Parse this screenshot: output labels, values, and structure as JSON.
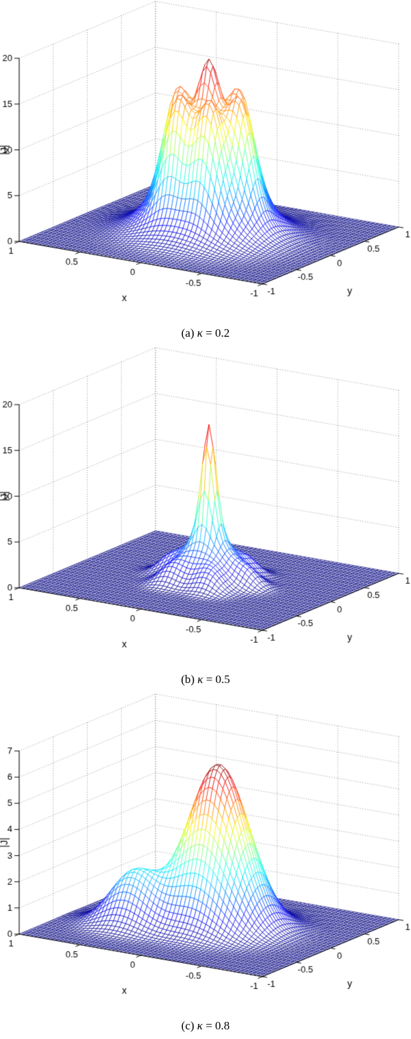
{
  "page": {
    "background": "#ffffff"
  },
  "chart_data": [
    {
      "type": "surface-mesh-3d",
      "caption_prefix": "(a) ",
      "caption_symbol": "κ",
      "caption_suffix": " = 0.2",
      "kappa": 0.2,
      "xlabel": "x",
      "ylabel": "y",
      "zlabel": "|J|",
      "xlim": [
        -1,
        1
      ],
      "ylim": [
        -1,
        1
      ],
      "zlim": [
        0,
        20
      ],
      "xticks": [
        -1,
        -0.5,
        0,
        0.5,
        1
      ],
      "yticks": [
        -1,
        -0.5,
        0,
        0.5,
        1
      ],
      "zticks": [
        0,
        5,
        10,
        15,
        20
      ],
      "approx_peak": 19,
      "colormap": "jet",
      "grid_points": 61,
      "surface_components": [
        {
          "amp": 11.0,
          "x0": 0.0,
          "y0": 0.0,
          "sx": 0.4,
          "sy": 0.4
        },
        {
          "amp": 7.5,
          "x0": 0.0,
          "y0": 0.0,
          "sx": 0.1,
          "sy": 0.1
        },
        {
          "amp": 8.0,
          "x0": 0.27,
          "y0": 0.0,
          "sx": 0.13,
          "sy": 0.13
        },
        {
          "amp": 8.0,
          "x0": 0.135,
          "y0": 0.234,
          "sx": 0.13,
          "sy": 0.13
        },
        {
          "amp": 8.0,
          "x0": -0.135,
          "y0": 0.234,
          "sx": 0.13,
          "sy": 0.13
        },
        {
          "amp": 8.0,
          "x0": -0.27,
          "y0": 0.0,
          "sx": 0.13,
          "sy": 0.13
        },
        {
          "amp": 8.0,
          "x0": -0.135,
          "y0": -0.234,
          "sx": 0.13,
          "sy": 0.13
        },
        {
          "amp": 8.0,
          "x0": 0.135,
          "y0": -0.234,
          "sx": 0.13,
          "sy": 0.13
        }
      ]
    },
    {
      "type": "surface-mesh-3d",
      "caption_prefix": "(b) ",
      "caption_symbol": "κ",
      "caption_suffix": " = 0.5",
      "kappa": 0.5,
      "xlabel": "x",
      "ylabel": "y",
      "zlabel": "|J|",
      "xlim": [
        -1,
        1
      ],
      "ylim": [
        -1,
        1
      ],
      "zlim": [
        0,
        20
      ],
      "xticks": [
        -1,
        -0.5,
        0,
        0.5,
        1
      ],
      "yticks": [
        -1,
        -0.5,
        0,
        0.5,
        1
      ],
      "zticks": [
        0,
        5,
        10,
        15,
        20
      ],
      "approx_peak": 17,
      "colormap": "jet",
      "grid_points": 61,
      "surface_components": [
        {
          "amp": 6.0,
          "x0": 0.0,
          "y0": 0.0,
          "sx": 0.22,
          "sy": 0.22
        },
        {
          "amp": 11.0,
          "x0": 0.0,
          "y0": 0.0,
          "sx": 0.07,
          "sy": 0.07
        },
        {
          "amp": 1.6,
          "x0": 0.32,
          "y0": 0.0,
          "sx": 0.13,
          "sy": 0.13
        },
        {
          "amp": 1.6,
          "x0": 0.16,
          "y0": 0.277,
          "sx": 0.13,
          "sy": 0.13
        },
        {
          "amp": 1.6,
          "x0": -0.16,
          "y0": 0.277,
          "sx": 0.13,
          "sy": 0.13
        },
        {
          "amp": 1.6,
          "x0": -0.32,
          "y0": 0.0,
          "sx": 0.13,
          "sy": 0.13
        },
        {
          "amp": 1.6,
          "x0": -0.16,
          "y0": -0.277,
          "sx": 0.13,
          "sy": 0.13
        },
        {
          "amp": 1.6,
          "x0": 0.16,
          "y0": -0.277,
          "sx": 0.13,
          "sy": 0.13
        }
      ]
    },
    {
      "type": "surface-mesh-3d",
      "caption_prefix": "(c) ",
      "caption_symbol": "κ",
      "caption_suffix": " = 0.8",
      "kappa": 0.8,
      "xlabel": "x",
      "ylabel": "y",
      "zlabel": "|J|",
      "xlim": [
        -1,
        1
      ],
      "ylim": [
        -1,
        1
      ],
      "zlim": [
        0,
        7
      ],
      "xticks": [
        -1,
        -0.5,
        0,
        0.5,
        1
      ],
      "yticks": [
        -1,
        -0.5,
        0,
        0.5,
        1
      ],
      "zticks": [
        0,
        1,
        2,
        3,
        4,
        5,
        6,
        7
      ],
      "approx_peak": 6.5,
      "colormap": "jet",
      "grid_points": 61,
      "surface_components": [
        {
          "amp": 6.2,
          "x0": -0.05,
          "y0": 0.05,
          "sx": 0.32,
          "sy": 0.32
        },
        {
          "amp": 2.0,
          "x0": 0.45,
          "y0": -0.3,
          "sx": 0.25,
          "sy": 0.22
        }
      ]
    }
  ]
}
